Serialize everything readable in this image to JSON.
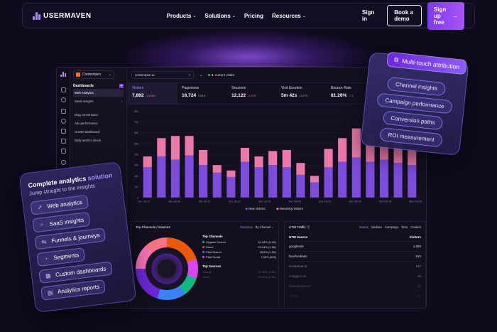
{
  "nav": {
    "brand": "USERMAVEN",
    "menu": [
      "Products",
      "Solutions",
      "Pricing",
      "Resources"
    ],
    "menu_has_dropdown": [
      true,
      true,
      false,
      true
    ],
    "signin": "Sign in",
    "demo": "Book a demo",
    "signup": "Sign up free",
    "signup_icon": "arrow-right-icon"
  },
  "app": {
    "workspace": "Contentpen",
    "sidebar_title": "Dashboards",
    "sidebar_items": [
      "Web Analytics",
      "SaaS Insights"
    ],
    "sidebar_sub": [
      "Blog conversions",
      "Ads performance",
      "Growth dashboard",
      "Daily metrics check"
    ],
    "domain": "contentpen.ai",
    "current_visitor_count": "1",
    "current_visitor_label": "current visitor",
    "metrics": [
      {
        "label": "Visitors",
        "value": "7,892",
        "delta": "-24.66%",
        "dir": "neg"
      },
      {
        "label": "Pageviews",
        "value": "16,724",
        "delta": "5.06%",
        "dir": "pos"
      },
      {
        "label": "Sessions",
        "value": "12,122",
        "delta": "-9.13%",
        "dir": "neg"
      },
      {
        "label": "Visit Duration",
        "value": "5m 42s",
        "delta": "11.97%",
        "dir": "pos"
      },
      {
        "label": "Bounce Rate",
        "value": "81.26%",
        "delta": "-7.2",
        "dir": "neg"
      }
    ],
    "chart_legend": [
      "New Visitors",
      "Returning Visitors"
    ],
    "colors": {
      "new": "#7c4ddb",
      "returning": "#e879a8",
      "accent": "#a78bfa"
    },
    "top_channels": {
      "title": "Top Channels / Sources",
      "tabs": [
        "Overview",
        "By Channel"
      ],
      "list_title": "Top Channels",
      "rows": [
        {
          "name": "Organic Search",
          "pct": "42.94%",
          "count": "(3.4K)",
          "color": "#10b981"
        },
        {
          "name": "Direct",
          "pct": "23.04%",
          "count": "(1.8K)",
          "color": "#ea580c"
        },
        {
          "name": "Paid Search",
          "pct": "18.8%",
          "count": "(1.5K)",
          "color": "#3b82f6"
        },
        {
          "name": "Paid Social",
          "pct": "7.68%",
          "count": "(605)",
          "color": "#d946ef"
        }
      ],
      "sources_title": "Top Sources",
      "sources": [
        {
          "name": "Google",
          "pct": "35.48%",
          "count": "(2.8K)"
        },
        {
          "name": "Direct",
          "pct": "23.04%",
          "count": "(1.8K)"
        }
      ]
    },
    "utm": {
      "title": "UTM Traffic",
      "tabs": [
        "Source",
        "Medium",
        "Campaign",
        "Term",
        "Content"
      ],
      "col1": "UTM Source",
      "col2": "Visitors",
      "rows": [
        {
          "name": "googleads",
          "val": "1,393"
        },
        {
          "name": "facebookads",
          "val": "810"
        },
        {
          "name": "ccustomer.io",
          "val": "137"
        },
        {
          "name": "chatgpt.com",
          "val": "46"
        },
        {
          "name": "linkedinadverts",
          "val": "37"
        },
        {
          "name": "ahrefs",
          "val": "36"
        }
      ]
    }
  },
  "chart_data": {
    "type": "bar",
    "stacked": true,
    "ylim": [
      0,
      800
    ],
    "yticks": [
      "800",
      "700",
      "600",
      "500",
      "400",
      "300",
      "200",
      "100",
      "0"
    ],
    "xticks": [
      "Sun, Jan 01",
      "Sat, Jan 08",
      "Sat, Jan 15",
      "Sun, Jan 22",
      "Sun, Jan 29",
      "Sun, Feb 05",
      "Sun, Feb 12",
      "Sun, Feb 19",
      "Sun, Feb 26",
      "Wed, Feb 28"
    ],
    "series": [
      {
        "name": "New Visitors",
        "values": [
          280,
          380,
          350,
          390,
          300,
          230,
          190,
          330,
          280,
          300,
          280,
          210,
          140,
          280,
          330,
          370,
          330,
          350,
          320,
          300
        ]
      },
      {
        "name": "Returning Visitors",
        "values": [
          100,
          170,
          220,
          180,
          140,
          70,
          60,
          130,
          100,
          130,
          160,
          110,
          60,
          170,
          220,
          270,
          260,
          230,
          190,
          160
        ]
      }
    ]
  },
  "left_card": {
    "title": "Complete analytics",
    "title_accent": "solution",
    "subtitle": "Jump straight to the insights",
    "items": [
      {
        "label": "Web analytics",
        "icon": "cursor-icon"
      },
      {
        "label": "SaaS insights",
        "icon": "magnifier-icon"
      },
      {
        "label": "Funnels & journeys",
        "icon": "funnel-icon"
      },
      {
        "label": "Segments",
        "icon": "pie-icon"
      },
      {
        "label": "Custom dashboards",
        "icon": "grid-icon"
      },
      {
        "label": "Analytics reports",
        "icon": "report-icon"
      }
    ]
  },
  "right_card": {
    "badge": "Multi-touch attribution",
    "items": [
      "Channel insights",
      "Campaign performance",
      "Conversion paths",
      "ROI measurement"
    ]
  }
}
